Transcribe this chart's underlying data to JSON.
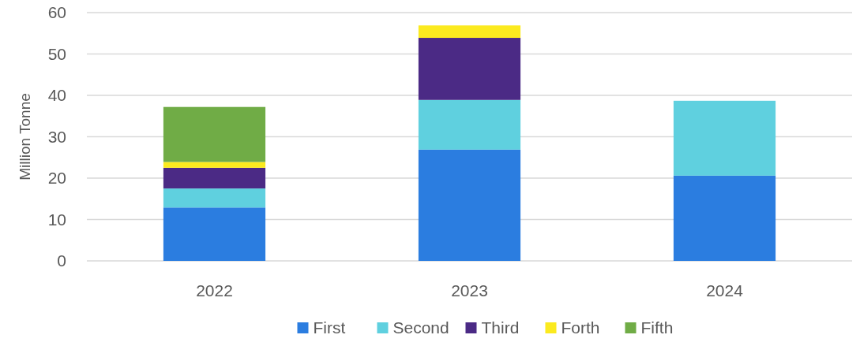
{
  "chart_data": {
    "type": "bar",
    "stacked": true,
    "ylabel": "Million Tonne",
    "categories": [
      "2022",
      "2023",
      "2024"
    ],
    "series": [
      {
        "name": "First",
        "color": "#2b7de0",
        "values": [
          12.9,
          26.9,
          20.6
        ]
      },
      {
        "name": "Second",
        "color": "#5fd0df",
        "values": [
          4.6,
          12.0,
          18.1
        ]
      },
      {
        "name": "Third",
        "color": "#4b2a85",
        "values": [
          5.0,
          15.0,
          null
        ]
      },
      {
        "name": "Forth",
        "color": "#fbea1f",
        "values": [
          1.4,
          3.0,
          null
        ]
      },
      {
        "name": "Fifth",
        "color": "#70ac46",
        "values": [
          13.3,
          null,
          null
        ]
      }
    ],
    "ylim": [
      0,
      60
    ],
    "yticks": [
      0,
      10,
      20,
      30,
      40,
      50,
      60
    ],
    "grid": "y",
    "legend": "bottom"
  }
}
